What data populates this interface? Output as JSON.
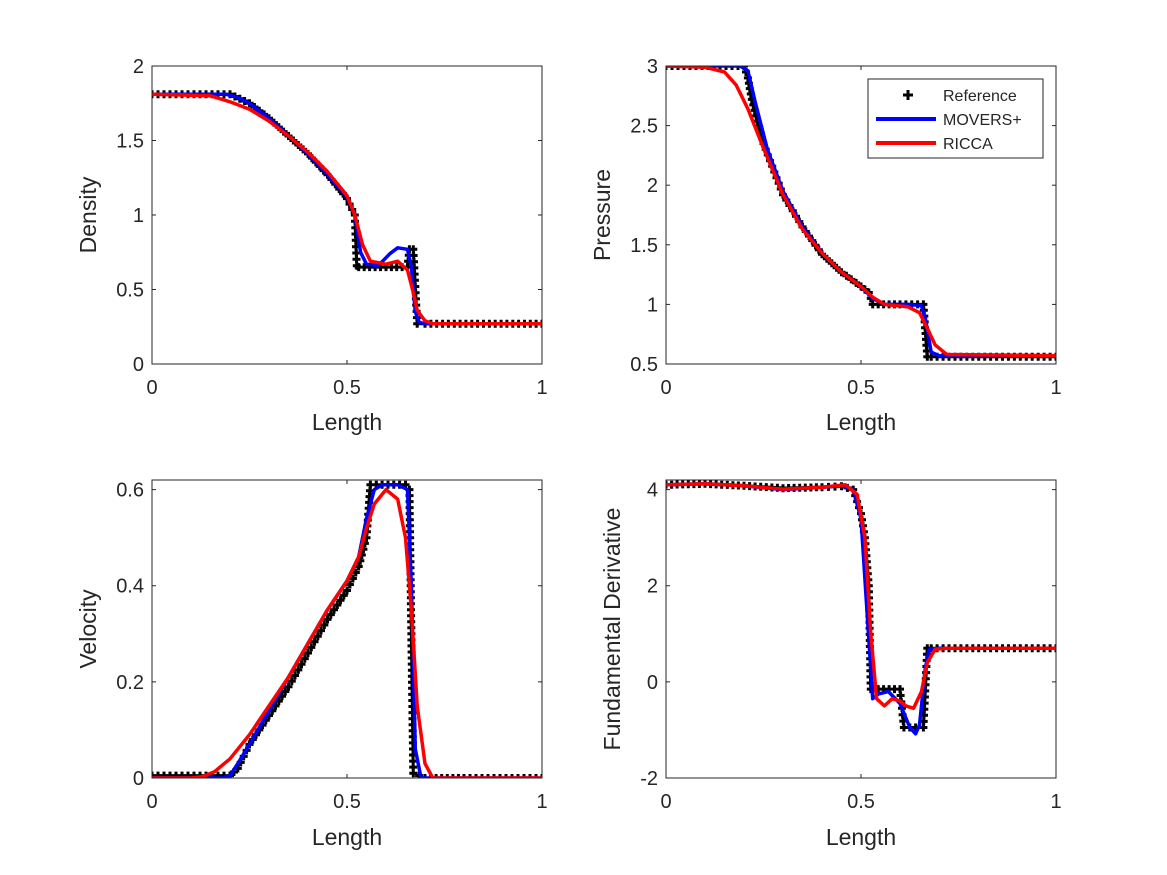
{
  "colors": {
    "reference": "#000000",
    "movers": "#0000ff",
    "ricca": "#ff0000",
    "axes": "#262626",
    "background": "#ffffff"
  },
  "legend": {
    "entries": [
      {
        "label": "Reference",
        "color": "#000000",
        "style": "marker"
      },
      {
        "label": "MOVERS+",
        "color": "#0000ff",
        "style": "line"
      },
      {
        "label": "RICCA",
        "color": "#ff0000",
        "style": "line"
      }
    ],
    "location": "top-right of Pressure panel"
  },
  "chart_data": [
    {
      "type": "line",
      "id": "density",
      "xlabel": "Length",
      "ylabel": "Density",
      "xlim": [
        0,
        1
      ],
      "ylim": [
        0,
        2
      ],
      "xticks": [
        0,
        0.5,
        1
      ],
      "xtick_labels": [
        "0",
        "0.5",
        "1"
      ],
      "yticks": [
        0,
        0.5,
        1,
        1.5,
        2
      ],
      "ytick_labels": [
        "0",
        "0.5",
        "1",
        "1.5",
        "2"
      ],
      "series": [
        {
          "name": "Reference",
          "style": "marker",
          "x": [
            0,
            0.2,
            0.25,
            0.3,
            0.35,
            0.4,
            0.45,
            0.5,
            0.52,
            0.525,
            0.53,
            0.6,
            0.655,
            0.66,
            0.67,
            0.68,
            0.7,
            1
          ],
          "y": [
            1.81,
            1.81,
            1.75,
            1.65,
            1.53,
            1.41,
            1.27,
            1.11,
            1.0,
            0.66,
            0.65,
            0.65,
            0.65,
            0.77,
            0.77,
            0.27,
            0.27,
            0.27
          ]
        },
        {
          "name": "MOVERS+",
          "style": "line",
          "x": [
            0,
            0.19,
            0.22,
            0.25,
            0.3,
            0.35,
            0.4,
            0.45,
            0.5,
            0.52,
            0.535,
            0.55,
            0.58,
            0.61,
            0.63,
            0.655,
            0.665,
            0.675,
            0.685,
            0.7,
            1
          ],
          "y": [
            1.81,
            1.81,
            1.79,
            1.75,
            1.65,
            1.53,
            1.41,
            1.27,
            1.12,
            1.0,
            0.75,
            0.67,
            0.66,
            0.74,
            0.78,
            0.77,
            0.65,
            0.35,
            0.28,
            0.27,
            0.27
          ]
        },
        {
          "name": "RICCA",
          "style": "line",
          "x": [
            0,
            0.15,
            0.2,
            0.25,
            0.3,
            0.35,
            0.4,
            0.45,
            0.5,
            0.52,
            0.54,
            0.56,
            0.6,
            0.63,
            0.655,
            0.67,
            0.68,
            0.7,
            0.72,
            1
          ],
          "y": [
            1.81,
            1.8,
            1.76,
            1.71,
            1.63,
            1.53,
            1.42,
            1.29,
            1.13,
            1.0,
            0.8,
            0.69,
            0.67,
            0.69,
            0.63,
            0.48,
            0.36,
            0.29,
            0.27,
            0.27
          ]
        }
      ]
    },
    {
      "type": "line",
      "id": "pressure",
      "xlabel": "Length",
      "ylabel": "Pressure",
      "xlim": [
        0,
        1
      ],
      "ylim": [
        0.5,
        3
      ],
      "xticks": [
        0,
        0.5,
        1
      ],
      "xtick_labels": [
        "0",
        "0.5",
        "1"
      ],
      "yticks": [
        0.5,
        1,
        1.5,
        2,
        2.5,
        3
      ],
      "ytick_labels": [
        "0.5",
        "1",
        "1.5",
        "2",
        "2.5",
        "3"
      ],
      "series": [
        {
          "name": "Reference",
          "style": "marker",
          "x": [
            0,
            0.2,
            0.21,
            0.22,
            0.25,
            0.3,
            0.35,
            0.4,
            0.45,
            0.5,
            0.52,
            0.53,
            0.6,
            0.66,
            0.67,
            0.68,
            1
          ],
          "y": [
            3.0,
            3.0,
            2.9,
            2.72,
            2.35,
            1.92,
            1.65,
            1.42,
            1.27,
            1.15,
            1.1,
            1.0,
            1.0,
            1.0,
            0.56,
            0.56,
            0.56
          ]
        },
        {
          "name": "MOVERS+",
          "style": "line",
          "x": [
            0,
            0.19,
            0.21,
            0.23,
            0.26,
            0.3,
            0.35,
            0.4,
            0.45,
            0.5,
            0.53,
            0.56,
            0.62,
            0.655,
            0.665,
            0.68,
            0.7,
            1
          ],
          "y": [
            3.0,
            3.0,
            2.96,
            2.68,
            2.3,
            1.95,
            1.65,
            1.43,
            1.27,
            1.15,
            1.05,
            1.0,
            1.0,
            0.99,
            0.88,
            0.6,
            0.57,
            0.57
          ]
        },
        {
          "name": "RICCA",
          "style": "line",
          "x": [
            0,
            0.1,
            0.15,
            0.18,
            0.21,
            0.25,
            0.3,
            0.35,
            0.4,
            0.45,
            0.5,
            0.53,
            0.56,
            0.62,
            0.65,
            0.67,
            0.69,
            0.72,
            1
          ],
          "y": [
            3.0,
            2.99,
            2.95,
            2.84,
            2.64,
            2.31,
            1.92,
            1.63,
            1.43,
            1.27,
            1.15,
            1.06,
            1.0,
            0.98,
            0.93,
            0.8,
            0.66,
            0.58,
            0.57
          ]
        }
      ]
    },
    {
      "type": "line",
      "id": "velocity",
      "xlabel": "Length",
      "ylabel": "Velocity",
      "xlim": [
        0,
        1
      ],
      "ylim": [
        0,
        0.62
      ],
      "xticks": [
        0,
        0.5,
        1
      ],
      "xtick_labels": [
        "0",
        "0.5",
        "1"
      ],
      "yticks": [
        0,
        0.2,
        0.4,
        0.6
      ],
      "ytick_labels": [
        "0",
        "0.2",
        "0.4",
        "0.6"
      ],
      "series": [
        {
          "name": "Reference",
          "style": "marker",
          "x": [
            0,
            0.2,
            0.22,
            0.25,
            0.3,
            0.35,
            0.4,
            0.45,
            0.5,
            0.53,
            0.55,
            0.56,
            0.65,
            0.66,
            0.665,
            0.67,
            0.7,
            0.8,
            1
          ],
          "y": [
            0.005,
            0.005,
            0.02,
            0.07,
            0.13,
            0.19,
            0.26,
            0.33,
            0.39,
            0.44,
            0.5,
            0.61,
            0.61,
            0.6,
            0.3,
            0.01,
            0.0,
            0.0,
            0.0
          ]
        },
        {
          "name": "MOVERS+",
          "style": "line",
          "x": [
            0,
            0.18,
            0.2,
            0.22,
            0.25,
            0.3,
            0.35,
            0.4,
            0.45,
            0.5,
            0.53,
            0.55,
            0.57,
            0.59,
            0.63,
            0.655,
            0.665,
            0.675,
            0.69,
            1
          ],
          "y": [
            0.0,
            0.0,
            0.005,
            0.03,
            0.07,
            0.14,
            0.21,
            0.28,
            0.35,
            0.41,
            0.46,
            0.54,
            0.6,
            0.61,
            0.61,
            0.6,
            0.4,
            0.06,
            0.0,
            0.0
          ]
        },
        {
          "name": "RICCA",
          "style": "line",
          "x": [
            0,
            0.1,
            0.13,
            0.16,
            0.2,
            0.25,
            0.3,
            0.35,
            0.4,
            0.45,
            0.5,
            0.53,
            0.55,
            0.57,
            0.6,
            0.63,
            0.65,
            0.665,
            0.68,
            0.7,
            0.72,
            1
          ],
          "y": [
            0.0,
            0.0,
            0.003,
            0.013,
            0.04,
            0.09,
            0.15,
            0.21,
            0.28,
            0.35,
            0.41,
            0.46,
            0.52,
            0.57,
            0.6,
            0.58,
            0.5,
            0.35,
            0.15,
            0.03,
            0.0,
            0.0
          ]
        }
      ]
    },
    {
      "type": "line",
      "id": "fundamental-derivative",
      "xlabel": "Length",
      "ylabel": "Fundamental Derivative",
      "xlim": [
        0,
        1
      ],
      "ylim": [
        -2,
        4.2
      ],
      "xticks": [
        0,
        0.5,
        1
      ],
      "xtick_labels": [
        "0",
        "0.5",
        "1"
      ],
      "yticks": [
        -2,
        0,
        2,
        4
      ],
      "ytick_labels": [
        "-2",
        "0",
        "2",
        "4"
      ],
      "series": [
        {
          "name": "Reference",
          "style": "marker",
          "x": [
            0,
            0.1,
            0.2,
            0.3,
            0.4,
            0.45,
            0.48,
            0.5,
            0.51,
            0.52,
            0.525,
            0.53,
            0.6,
            0.61,
            0.64,
            0.66,
            0.67,
            0.68,
            1
          ],
          "y": [
            4.1,
            4.12,
            4.08,
            4.03,
            4.05,
            4.07,
            4.0,
            3.5,
            3.0,
            2.0,
            -0.15,
            -0.15,
            -0.15,
            -0.95,
            -0.95,
            -0.95,
            0.7,
            0.7,
            0.7
          ]
        },
        {
          "name": "MOVERS+",
          "style": "line",
          "x": [
            0,
            0.1,
            0.2,
            0.3,
            0.4,
            0.45,
            0.48,
            0.5,
            0.515,
            0.53,
            0.545,
            0.57,
            0.6,
            0.625,
            0.64,
            0.65,
            0.665,
            0.675,
            0.7,
            1
          ],
          "y": [
            4.1,
            4.12,
            4.08,
            4.0,
            4.05,
            4.08,
            4.0,
            3.4,
            1.5,
            -0.35,
            -0.25,
            -0.2,
            -0.45,
            -0.95,
            -1.08,
            -0.9,
            0.3,
            0.68,
            0.7,
            0.7
          ]
        },
        {
          "name": "RICCA",
          "style": "line",
          "x": [
            0,
            0.1,
            0.2,
            0.3,
            0.4,
            0.46,
            0.49,
            0.51,
            0.525,
            0.54,
            0.56,
            0.58,
            0.6,
            0.615,
            0.635,
            0.655,
            0.67,
            0.69,
            0.72,
            1
          ],
          "y": [
            4.1,
            4.12,
            4.08,
            4.01,
            4.05,
            4.1,
            3.9,
            3.0,
            1.0,
            -0.35,
            -0.5,
            -0.35,
            -0.4,
            -0.5,
            -0.55,
            -0.2,
            0.4,
            0.68,
            0.7,
            0.7
          ]
        }
      ]
    }
  ]
}
